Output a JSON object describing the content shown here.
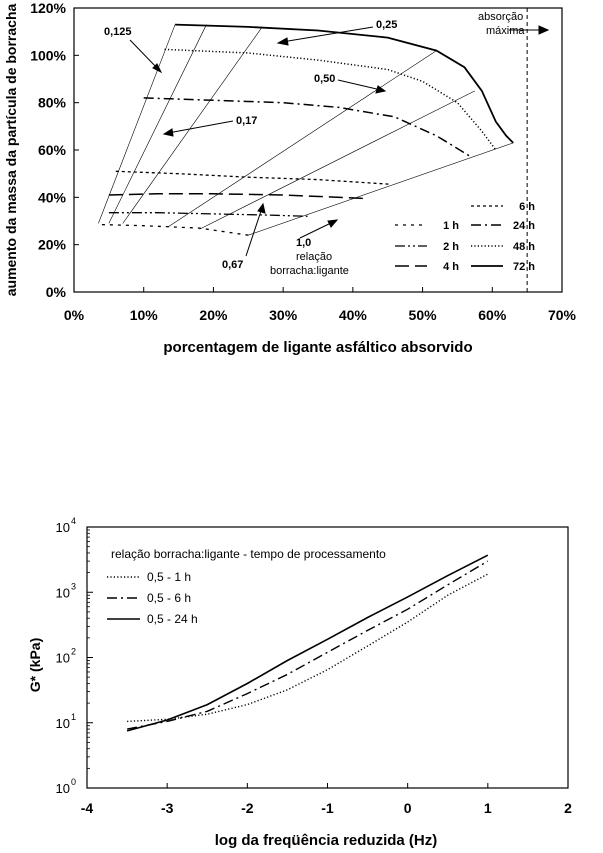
{
  "chart_data": [
    {
      "type": "line",
      "xlabel": "porcentagem de ligante asfáltico absorvido",
      "ylabel": "aumento da massa da partícula de borracha",
      "xlim": [
        0,
        70
      ],
      "ylim": [
        0,
        120
      ],
      "x_ticks": [
        "0%",
        "10%",
        "20%",
        "30%",
        "40%",
        "50%",
        "60%",
        "70%"
      ],
      "y_ticks": [
        "0%",
        "20%",
        "40%",
        "60%",
        "80%",
        "100%",
        "120%"
      ],
      "legend_position": "bottom-right",
      "series": [
        {
          "name": "1 h",
          "style": "dotted-short",
          "points": [
            [
              4,
              28.5
            ],
            [
              10,
              28
            ],
            [
              18,
              27
            ],
            [
              25,
              24
            ]
          ]
        },
        {
          "name": "2 h",
          "style": "dash-dot-dot",
          "points": [
            [
              5,
              33.5
            ],
            [
              12,
              33.5
            ],
            [
              20,
              33
            ],
            [
              28,
              32.5
            ],
            [
              33.5,
              32
            ]
          ]
        },
        {
          "name": "4 h",
          "style": "long-dash",
          "points": [
            [
              5,
              41
            ],
            [
              12,
              41.5
            ],
            [
              20,
              41.5
            ],
            [
              30,
              41
            ],
            [
              42,
              39.5
            ]
          ]
        },
        {
          "name": "6 h",
          "style": "short-dash",
          "points": [
            [
              6,
              51
            ],
            [
              15,
              50
            ],
            [
              25,
              48.5
            ],
            [
              35,
              47.5
            ],
            [
              45.5,
              45.5
            ]
          ]
        },
        {
          "name": "24 h",
          "style": "dash-dot",
          "points": [
            [
              10,
              82
            ],
            [
              20,
              81
            ],
            [
              30,
              80
            ],
            [
              38,
              78
            ],
            [
              46,
              74
            ],
            [
              52,
              66
            ],
            [
              57,
              57
            ]
          ]
        },
        {
          "name": "48 h",
          "style": "dotted",
          "points": [
            [
              13,
              102.5
            ],
            [
              25,
              101
            ],
            [
              35,
              98
            ],
            [
              45,
              94
            ],
            [
              50,
              89
            ],
            [
              55,
              80
            ],
            [
              58.5,
              68
            ],
            [
              60.5,
              60
            ]
          ]
        },
        {
          "name": "72 h",
          "style": "solid",
          "points": [
            [
              14.5,
              113
            ],
            [
              25,
              112
            ],
            [
              35,
              110.5
            ],
            [
              45,
              107.5
            ],
            [
              52,
              102
            ],
            [
              56,
              95
            ],
            [
              58.5,
              85
            ],
            [
              60.5,
              72
            ],
            [
              62,
              66
            ],
            [
              63,
              63
            ]
          ]
        }
      ],
      "ratio_lines": [
        {
          "label": "0,125",
          "points": [
            [
              3.5,
              29
            ],
            [
              14.5,
              113
            ]
          ]
        },
        {
          "label": "0,17",
          "points": [
            [
              5,
              29
            ],
            [
              19,
              113
            ]
          ]
        },
        {
          "label": "0,25",
          "points": [
            [
              7,
              29
            ],
            [
              27,
              112
            ]
          ]
        },
        {
          "label": "0,50",
          "points": [
            [
              13.5,
              27.5
            ],
            [
              52,
              102
            ]
          ]
        },
        {
          "label": "0,67",
          "points": [
            [
              18,
              26.5
            ],
            [
              57.5,
              85
            ]
          ]
        },
        {
          "label": "1,0",
          "points": [
            [
              25,
              24
            ],
            [
              63,
              63
            ]
          ]
        }
      ],
      "vline": {
        "x": 65,
        "label": "absorção máxima"
      },
      "annotations": {
        "r0125": "0,125",
        "r025": "0,25",
        "r050": "0,50",
        "r017": "0,17",
        "r067": "0,67",
        "r10": "1,0",
        "relacao": "relação",
        "borracha_ligante": "borracha:ligante",
        "absorcao": "absorção",
        "maxima": "máxima"
      }
    },
    {
      "type": "line",
      "xlabel": "log da freqüência reduzida (Hz)",
      "ylabel": "G* (kPa)",
      "y_scale": "log",
      "xlim": [
        -4,
        2
      ],
      "ylim": [
        1,
        10000
      ],
      "x_ticks": [
        "-4",
        "-3",
        "-2",
        "-1",
        "0",
        "1",
        "2"
      ],
      "y_tick_exponents": [
        "0",
        "1",
        "2",
        "3",
        "4"
      ],
      "y_tick_base": "10",
      "legend_title": "relação borracha:ligante - tempo de processamento",
      "legend_position": "top-left",
      "series": [
        {
          "name": "0,5 - 1 h",
          "style": "dotted",
          "x": [
            -3.5,
            -3.0,
            -2.5,
            -2.0,
            -1.5,
            -1.0,
            -0.5,
            0.0,
            0.5,
            1.0
          ],
          "y": [
            10.5,
            11.3,
            13.5,
            19,
            32,
            65,
            150,
            350,
            900,
            1900
          ]
        },
        {
          "name": "0,5 - 6 h",
          "style": "dash-dot",
          "x": [
            -3.5,
            -3.0,
            -2.5,
            -2.0,
            -1.5,
            -1.0,
            -0.5,
            0.0,
            0.5,
            1.0
          ],
          "y": [
            8.0,
            10.5,
            15,
            28,
            55,
            120,
            260,
            550,
            1300,
            3000
          ]
        },
        {
          "name": "0,5 - 24 h",
          "style": "solid",
          "x": [
            -3.5,
            -3.0,
            -2.5,
            -2.0,
            -1.5,
            -1.0,
            -0.5,
            0.0,
            0.5,
            1.0
          ],
          "y": [
            7.5,
            11,
            19,
            40,
            90,
            190,
            410,
            850,
            1800,
            3700
          ]
        }
      ]
    }
  ]
}
